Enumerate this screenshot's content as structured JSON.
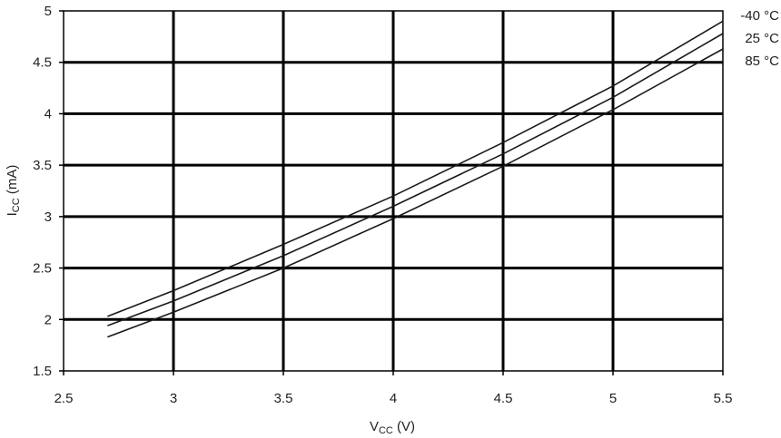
{
  "chart_data": {
    "type": "line",
    "xlabel": {
      "main": "V",
      "sub": "CC",
      "suffix": " (V)"
    },
    "ylabel": {
      "main": "I",
      "sub": "CC",
      "suffix": " (mA)"
    },
    "xlim": [
      2.5,
      5.5
    ],
    "ylim": [
      1.5,
      5
    ],
    "xticks": [
      "2.5",
      "3",
      "3.5",
      "4",
      "4.5",
      "5",
      "5.5"
    ],
    "yticks": [
      "1.5",
      "2",
      "2.5",
      "3",
      "3.5",
      "4",
      "4.5",
      "5"
    ],
    "grid": true,
    "legend_position": "right-end-of-lines",
    "series": [
      {
        "name": "-40 °C",
        "x": [
          2.7,
          3.0,
          3.5,
          4.0,
          4.5,
          5.0,
          5.5
        ],
        "y": [
          2.03,
          2.28,
          2.73,
          3.2,
          3.72,
          4.27,
          4.9
        ]
      },
      {
        "name": "25 °C",
        "x": [
          2.7,
          3.0,
          3.5,
          4.0,
          4.5,
          5.0,
          5.5
        ],
        "y": [
          1.94,
          2.18,
          2.62,
          3.1,
          3.61,
          4.16,
          4.78
        ]
      },
      {
        "name": "85 °C",
        "x": [
          2.7,
          3.0,
          3.5,
          4.0,
          4.5,
          5.0,
          5.5
        ],
        "y": [
          1.83,
          2.07,
          2.5,
          2.98,
          3.49,
          4.04,
          4.63
        ]
      }
    ]
  }
}
